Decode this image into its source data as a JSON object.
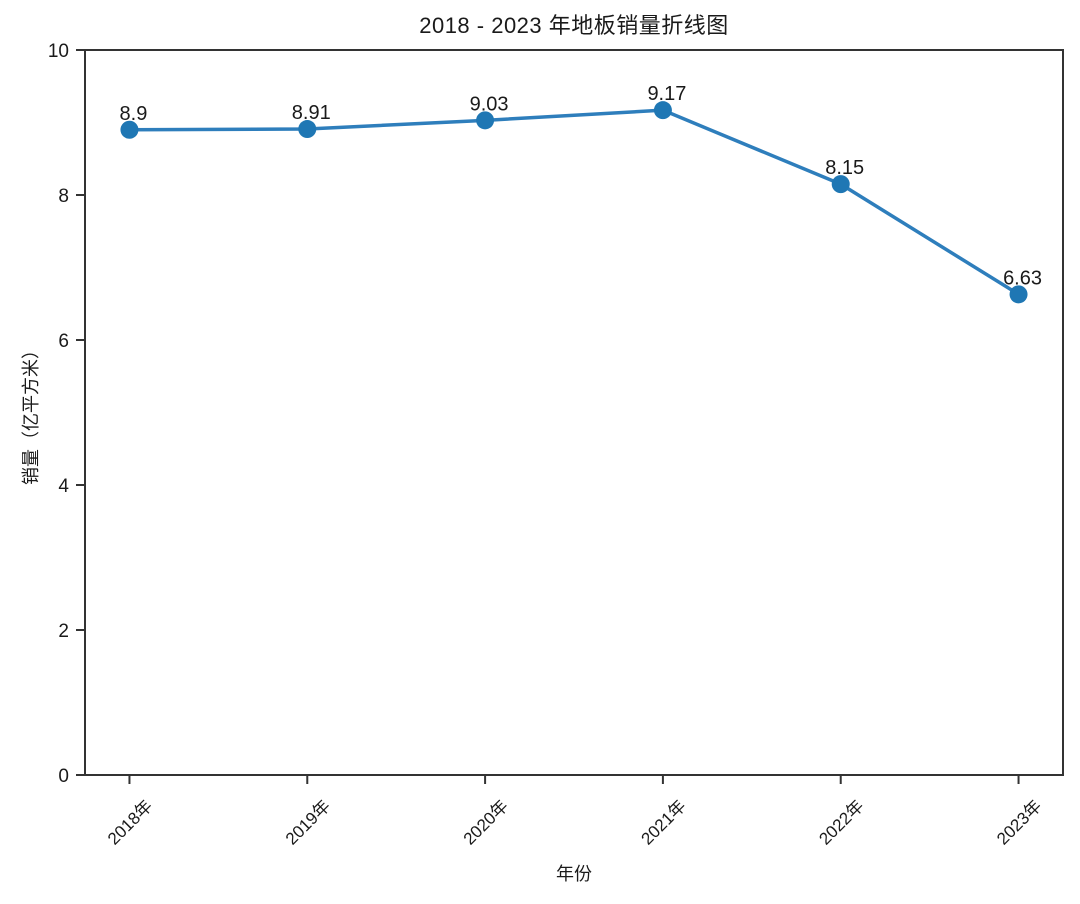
{
  "chart_data": {
    "type": "line",
    "title": "2018 - 2023 年地板销量折线图",
    "xlabel": "年份",
    "ylabel": "销量（亿平方米）",
    "categories": [
      "2018年",
      "2019年",
      "2020年",
      "2021年",
      "2022年",
      "2023年"
    ],
    "values": [
      8.9,
      8.91,
      9.03,
      9.17,
      8.15,
      6.63
    ],
    "point_labels": [
      "8.9",
      "8.91",
      "9.03",
      "9.17",
      "8.15",
      "6.63"
    ],
    "ylim": [
      0,
      10
    ],
    "yticks": [
      0,
      2,
      4,
      6,
      8,
      10
    ],
    "grid": false,
    "legend": false,
    "line_color": "#2e7ebc",
    "marker_color": "#1f77b4",
    "axis_color": "#333333",
    "text_color": "#1a1a1a"
  }
}
